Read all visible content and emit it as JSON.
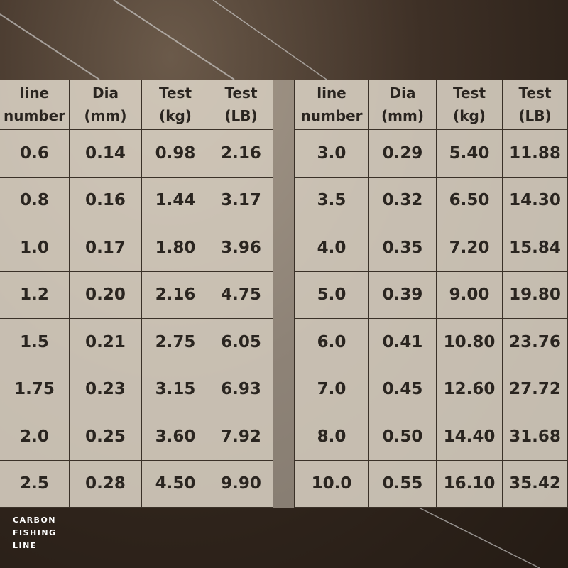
{
  "table": {
    "left": {
      "header": [
        [
          "line",
          "number"
        ],
        [
          "Dia",
          "(mm)"
        ],
        [
          "Test",
          "(kg)"
        ],
        [
          "Test",
          "(LB)"
        ]
      ],
      "rows": [
        [
          "0.6",
          "0.14",
          "0.98",
          "2.16"
        ],
        [
          "0.8",
          "0.16",
          "1.44",
          "3.17"
        ],
        [
          "1.0",
          "0.17",
          "1.80",
          "3.96"
        ],
        [
          "1.2",
          "0.20",
          "2.16",
          "4.75"
        ],
        [
          "1.5",
          "0.21",
          "2.75",
          "6.05"
        ],
        [
          "1.75",
          "0.23",
          "3.15",
          "6.93"
        ],
        [
          "2.0",
          "0.25",
          "3.60",
          "7.92"
        ],
        [
          "2.5",
          "0.28",
          "4.50",
          "9.90"
        ]
      ]
    },
    "right": {
      "header": [
        [
          "line",
          "number"
        ],
        [
          "Dia",
          "(mm)"
        ],
        [
          "Test",
          "(kg)"
        ],
        [
          "Test",
          "(LB)"
        ]
      ],
      "rows": [
        [
          "3.0",
          "0.29",
          "5.40",
          "11.88"
        ],
        [
          "3.5",
          "0.32",
          "6.50",
          "14.30"
        ],
        [
          "4.0",
          "0.35",
          "7.20",
          "15.84"
        ],
        [
          "5.0",
          "0.39",
          "9.00",
          "19.80"
        ],
        [
          "6.0",
          "0.41",
          "10.80",
          "23.76"
        ],
        [
          "7.0",
          "0.45",
          "12.60",
          "27.72"
        ],
        [
          "8.0",
          "0.50",
          "14.40",
          "31.68"
        ],
        [
          "10.0",
          "0.55",
          "16.10",
          "35.42"
        ]
      ]
    }
  },
  "brand": {
    "lines": [
      "CARBON",
      "FISHING",
      "LINE"
    ]
  }
}
